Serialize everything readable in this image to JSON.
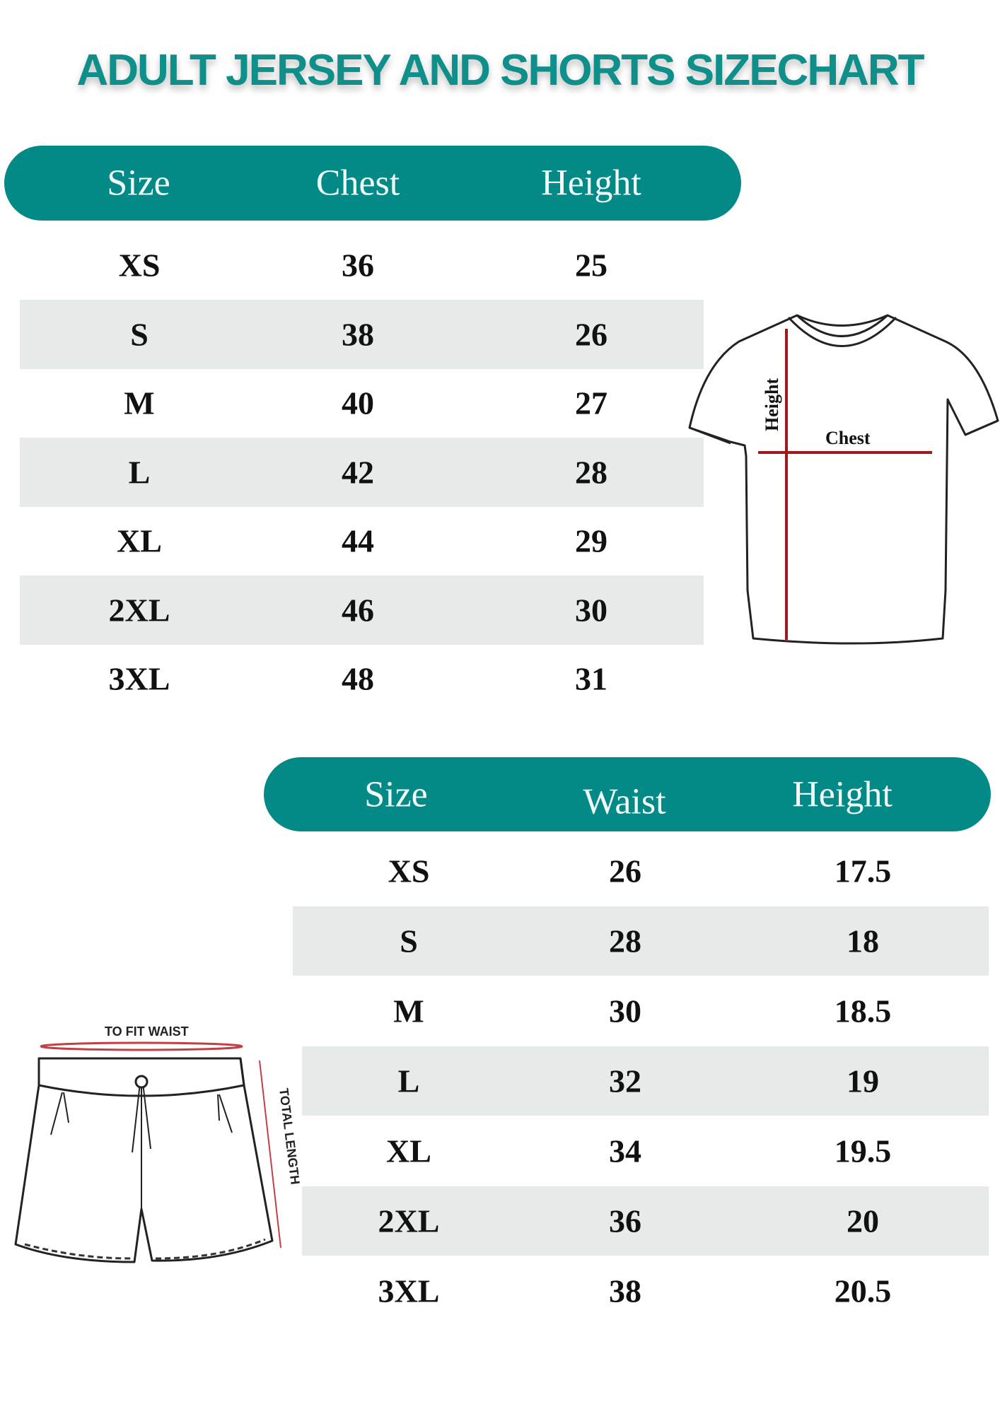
{
  "title": "ADULT JERSEY AND SHORTS SIZECHART",
  "colors": {
    "accent": "#038a87",
    "row_shade": "#e6ebea",
    "measure_line": "#b0202a"
  },
  "jersey": {
    "headers": [
      "Size",
      "Chest",
      "Height"
    ],
    "rows": [
      [
        "XS",
        "36",
        "25"
      ],
      [
        "S",
        "38",
        "26"
      ],
      [
        "M",
        "40",
        "27"
      ],
      [
        "L",
        "42",
        "28"
      ],
      [
        "XL",
        "44",
        "29"
      ],
      [
        "2XL",
        "46",
        "30"
      ],
      [
        "3XL",
        "48",
        "31"
      ]
    ],
    "diagram": {
      "icon": "t-shirt-icon",
      "height_label": "Height",
      "chest_label": "Chest"
    }
  },
  "shorts": {
    "headers": [
      "Size",
      "Waist",
      "Height"
    ],
    "rows": [
      [
        "XS",
        "26",
        "17.5"
      ],
      [
        "S",
        "28",
        "18"
      ],
      [
        "M",
        "30",
        "18.5"
      ],
      [
        "L",
        "32",
        "19"
      ],
      [
        "XL",
        "34",
        "19.5"
      ],
      [
        "2XL",
        "36",
        "20"
      ],
      [
        "3XL",
        "38",
        "20.5"
      ]
    ],
    "diagram": {
      "icon": "shorts-icon",
      "waist_label": "TO FIT WAIST",
      "length_label": "TOTAL LENGTH"
    }
  }
}
